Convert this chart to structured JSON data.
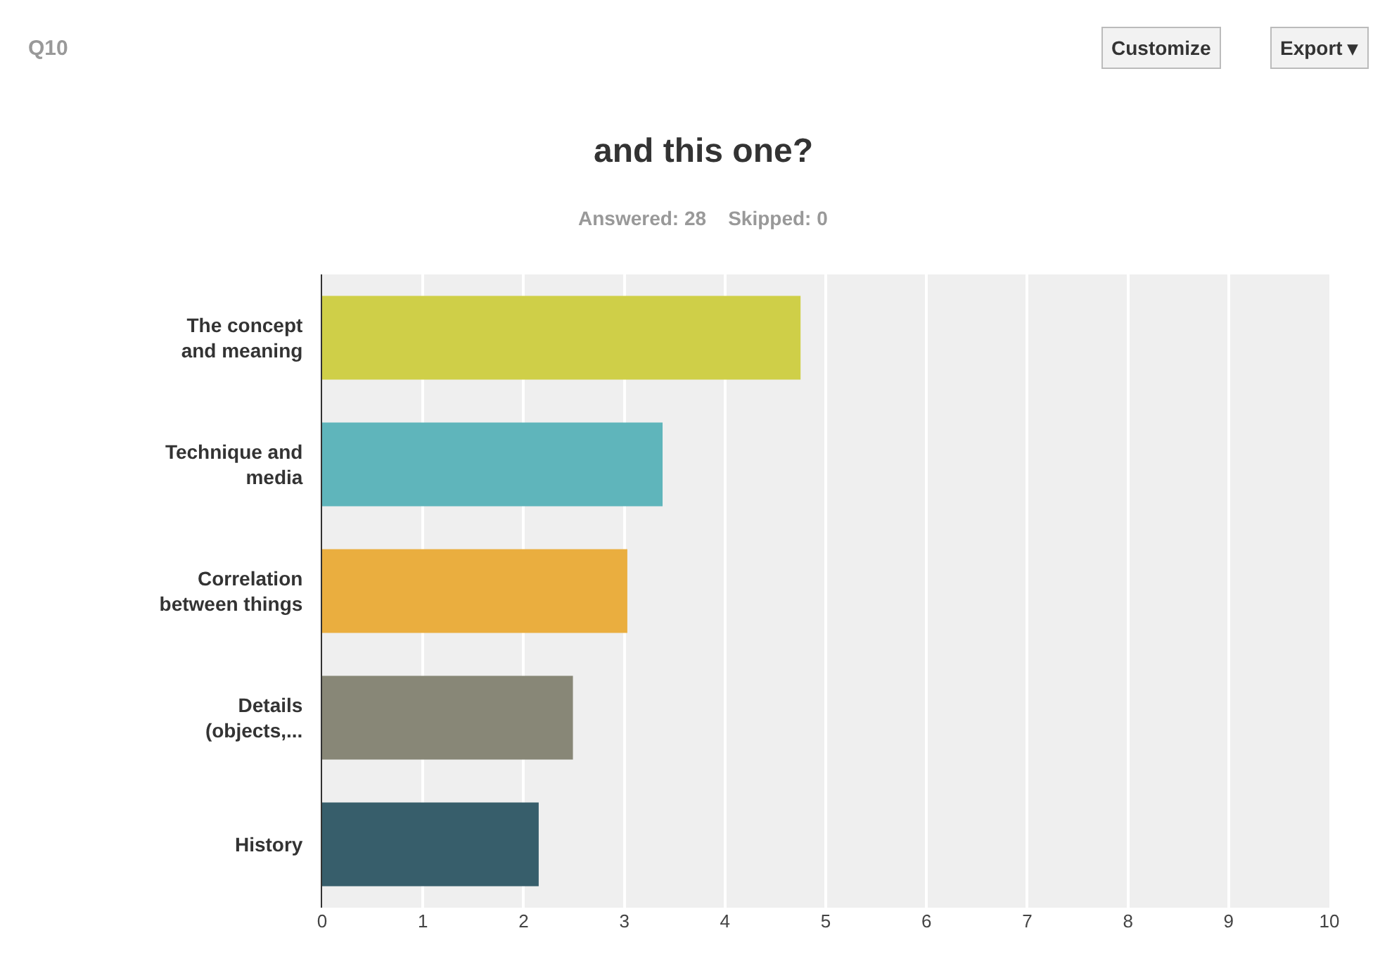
{
  "chart_data": {
    "type": "bar",
    "orientation": "horizontal",
    "title": "and this one?",
    "subtitle": "Answered: 28    Skipped: 0",
    "categories": [
      "The concept\nand meaning",
      "Technique and\nmedia",
      "Correlation\nbetween things",
      "Details\n(objects,...",
      "History"
    ],
    "values": [
      4.75,
      3.38,
      3.03,
      2.49,
      2.15
    ],
    "colors": [
      "#cfcf48",
      "#5fb5bb",
      "#eaae3f",
      "#888777",
      "#375e6b"
    ],
    "xlim": [
      0,
      10
    ],
    "xticks": [
      0,
      1,
      2,
      3,
      4,
      5,
      6,
      7,
      8,
      9,
      10
    ],
    "grid": "x",
    "annotations": [
      "Q10",
      "Customize",
      "Export ▾"
    ]
  }
}
